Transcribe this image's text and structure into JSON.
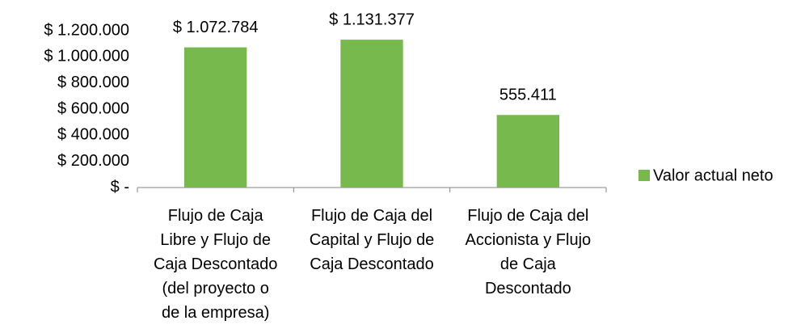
{
  "chart_data": {
    "type": "bar",
    "categories": [
      "Flujo de Caja\nLibre y Flujo de\nCaja Descontado\n(del proyecto o\nde la empresa)",
      "Flujo de Caja del\nCapital y Flujo de\nCaja Descontado",
      "Flujo de Caja del\nAccionista y Flujo\nde Caja\nDescontado"
    ],
    "series": [
      {
        "name": "Valor actual neto",
        "color": "#77b94c",
        "values": [
          1072784,
          1131377,
          555411
        ],
        "value_labels": [
          "$ 1.072.784",
          "$ 1.131.377",
          "555.411"
        ]
      }
    ],
    "ylim": [
      0,
      1200000
    ],
    "yticks": [
      {
        "value": 0,
        "label": "$ -"
      },
      {
        "value": 200000,
        "label": "$ 200.000"
      },
      {
        "value": 400000,
        "label": "$ 400.000"
      },
      {
        "value": 600000,
        "label": "$ 600.000"
      },
      {
        "value": 800000,
        "label": "$ 800.000"
      },
      {
        "value": 1000000,
        "label": "$ 1.000.000"
      },
      {
        "value": 1200000,
        "label": "$ 1.200.000"
      }
    ],
    "legend": "right"
  }
}
